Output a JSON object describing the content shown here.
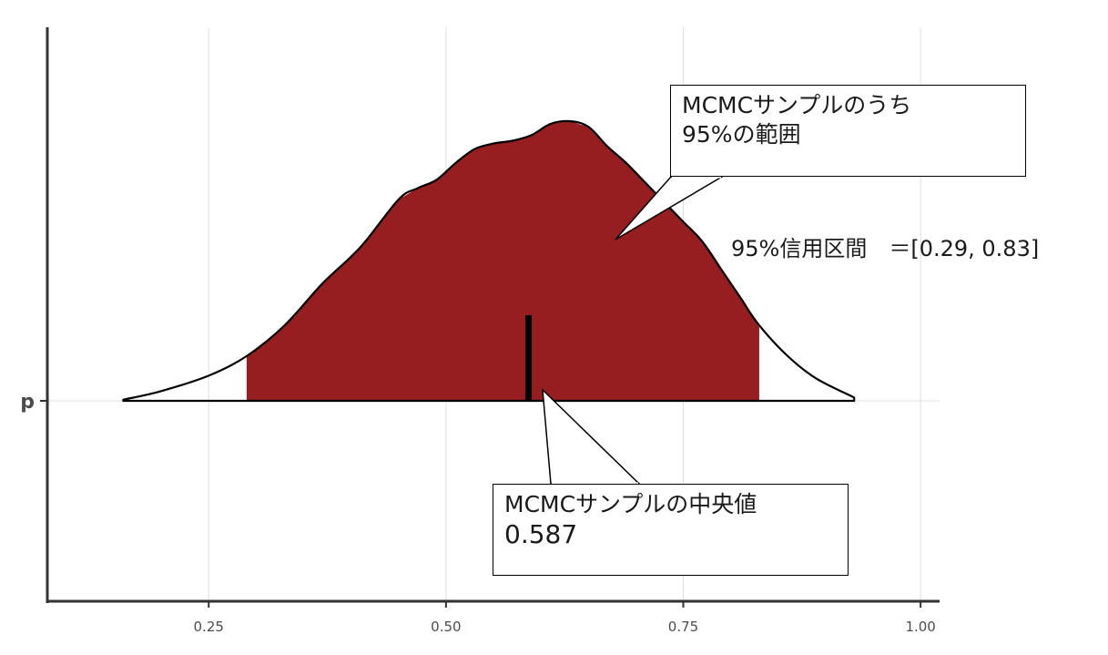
{
  "chart_data": {
    "type": "area",
    "title": "",
    "xlabel": "",
    "ylabel": "",
    "y_category": "p",
    "xlim": [
      0.08,
      1.02
    ],
    "x_ticks": [
      0.25,
      0.5,
      0.75,
      1.0
    ],
    "x_tick_labels": [
      "0.25",
      "0.50",
      "0.75",
      "1.00"
    ],
    "grid": true,
    "fill_color": "#961e21",
    "line_color": "#000000",
    "density": {
      "x": [
        0.16,
        0.2,
        0.25,
        0.29,
        0.33,
        0.37,
        0.41,
        0.45,
        0.47,
        0.49,
        0.51,
        0.53,
        0.55,
        0.57,
        0.59,
        0.61,
        0.63,
        0.65,
        0.67,
        0.69,
        0.71,
        0.73,
        0.75,
        0.77,
        0.79,
        0.81,
        0.83,
        0.86,
        0.89,
        0.93
      ],
      "y": [
        0.004,
        0.035,
        0.09,
        0.16,
        0.27,
        0.42,
        0.55,
        0.72,
        0.76,
        0.79,
        0.85,
        0.9,
        0.92,
        0.93,
        0.95,
        0.99,
        1.0,
        0.98,
        0.91,
        0.85,
        0.78,
        0.71,
        0.64,
        0.57,
        0.47,
        0.37,
        0.27,
        0.16,
        0.08,
        0.012
      ]
    },
    "credible_interval": {
      "low": 0.29,
      "high": 0.83,
      "level": "95%"
    },
    "median": 0.587,
    "annotations": {
      "range_line1": "MCMCサンプルのうち",
      "range_line2": "95%の範囲",
      "ci_text": "95%信用区間　＝[0.29, 0.83]",
      "median_line1": "MCMCサンプルの中央値",
      "median_line2": "0.587"
    }
  }
}
